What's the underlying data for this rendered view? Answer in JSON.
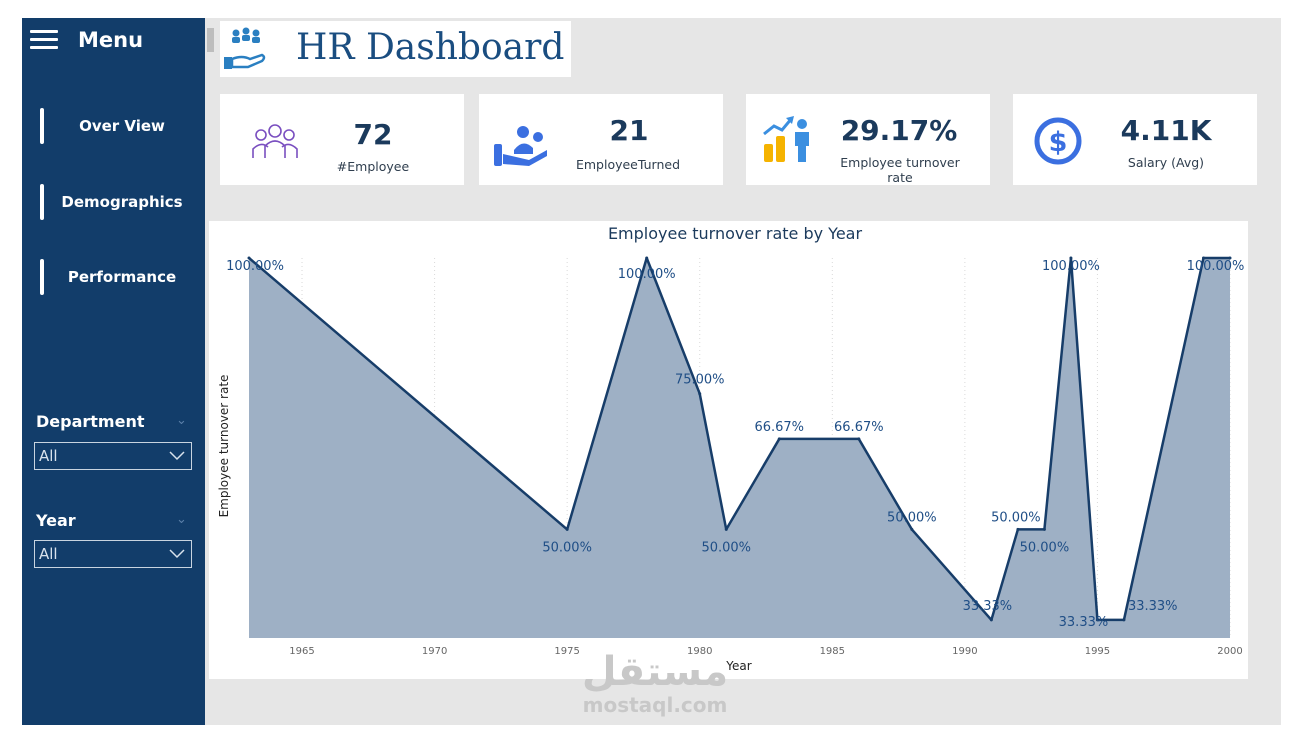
{
  "sidebar": {
    "menu_label": "Menu",
    "nav": [
      {
        "label": "Over View"
      },
      {
        "label": "Demographics"
      },
      {
        "label": "Performance"
      }
    ],
    "slicers": [
      {
        "title": "Department",
        "value": "All"
      },
      {
        "title": "Year",
        "value": "All"
      }
    ]
  },
  "header": {
    "title": "HR Dashboard"
  },
  "kpis": [
    {
      "value": "72",
      "label": "#Employee",
      "icon": "employees-group-icon"
    },
    {
      "value": "21",
      "label": "EmployeeTurned",
      "icon": "people-hand-icon"
    },
    {
      "value": "29.17%",
      "label": "Employee turnover rate",
      "icon": "growth-chart-person-icon"
    },
    {
      "value": "4.11K",
      "label": "Salary (Avg)",
      "icon": "dollar-circle-icon"
    }
  ],
  "colors": {
    "sidebar": "#123d6a",
    "accent": "#1a4d80",
    "area_fill": "#9eb0c5",
    "line": "#173d69",
    "icon_blue": "#3b6fe0"
  },
  "watermark": {
    "arabic": "مستقل",
    "latin": "mostaql.com"
  },
  "chart_data": {
    "type": "area",
    "title": "Employee turnover rate by Year",
    "xlabel": "Year",
    "ylabel": "Employee turnover rate",
    "x": [
      1963,
      1975,
      1978,
      1980,
      1981,
      1983,
      1986,
      1988,
      1991,
      1992,
      1993,
      1994,
      1995,
      1996,
      1999,
      2000
    ],
    "values": [
      100,
      50,
      100,
      75,
      50,
      66.67,
      66.67,
      50,
      33.33,
      50,
      50,
      100,
      33.33,
      33.33,
      100,
      100
    ],
    "data_labels": [
      "100.00%",
      "50.00%",
      "100.00%",
      "75.00%",
      "50.00%",
      "66.67%",
      "66.67%",
      "50.00%",
      "33.33%",
      "50.00%",
      "50.00%",
      "100.00%",
      "33.33%",
      "33.33%",
      "100.00%",
      ""
    ],
    "xlim": [
      1963,
      2000
    ],
    "ylim": [
      30,
      100
    ],
    "x_ticks": [
      "1965",
      "1970",
      "1975",
      "1980",
      "1985",
      "1990",
      "1995",
      "2000"
    ],
    "grid": "vertical dotted"
  }
}
